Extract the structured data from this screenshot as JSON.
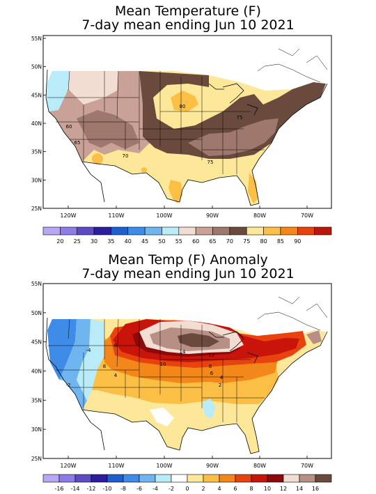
{
  "panels": [
    {
      "title_line1": "Mean Temperature (F)",
      "title_line2": "7-day mean ending Jun 10 2021",
      "lat_labels": [
        "55N",
        "50N",
        "45N",
        "40N",
        "35N",
        "30N",
        "25N"
      ],
      "lon_labels": [
        "120W",
        "110W",
        "100W",
        "90W",
        "80W",
        "70W"
      ],
      "contour_labels": [
        "60",
        "65",
        "70",
        "75",
        "75",
        "80"
      ],
      "colorbar": {
        "colors": [
          "#b9a6f5",
          "#8f7be8",
          "#5e4ac4",
          "#2b1d9e",
          "#1e5fd0",
          "#3e8ce8",
          "#6fb5f0",
          "#b9ecf8",
          "#f1ddd2",
          "#c9a197",
          "#9e786c",
          "#6b4a3e",
          "#fde89a",
          "#fbbf45",
          "#f4871a",
          "#e8420f",
          "#b9170a"
        ],
        "tick_labels": [
          "20",
          "25",
          "30",
          "35",
          "40",
          "45",
          "50",
          "55",
          "60",
          "65",
          "70",
          "75",
          "80",
          "85",
          "90"
        ]
      }
    },
    {
      "title_line1": "Mean Temp (F) Anomaly",
      "title_line2": "7-day mean ending Jun 10 2021",
      "lat_labels": [
        "55N",
        "50N",
        "45N",
        "40N",
        "35N",
        "30N",
        "25N"
      ],
      "lon_labels": [
        "120W",
        "110W",
        "100W",
        "90W",
        "80W",
        "70W"
      ],
      "contour_labels": [
        "-2",
        "-4",
        "4",
        "6",
        "8",
        "10",
        "12",
        "14",
        "8",
        "6",
        "4",
        "2"
      ],
      "colorbar": {
        "colors": [
          "#b9a6f5",
          "#8f7be8",
          "#5e4ac4",
          "#2b1d9e",
          "#1e5fd0",
          "#3e8ce8",
          "#6fb5f0",
          "#b9ecf8",
          "#ffffff",
          "#fde89a",
          "#fbbf45",
          "#f4871a",
          "#e8420f",
          "#c9140b",
          "#8e0909",
          "#f1ddd2",
          "#b78f84",
          "#6b4a3e"
        ],
        "tick_labels": [
          "-16",
          "-14",
          "-12",
          "-10",
          "-8",
          "-6",
          "-4",
          "-2",
          "0",
          "2",
          "4",
          "6",
          "8",
          "10",
          "12",
          "14",
          "16"
        ]
      }
    }
  ]
}
